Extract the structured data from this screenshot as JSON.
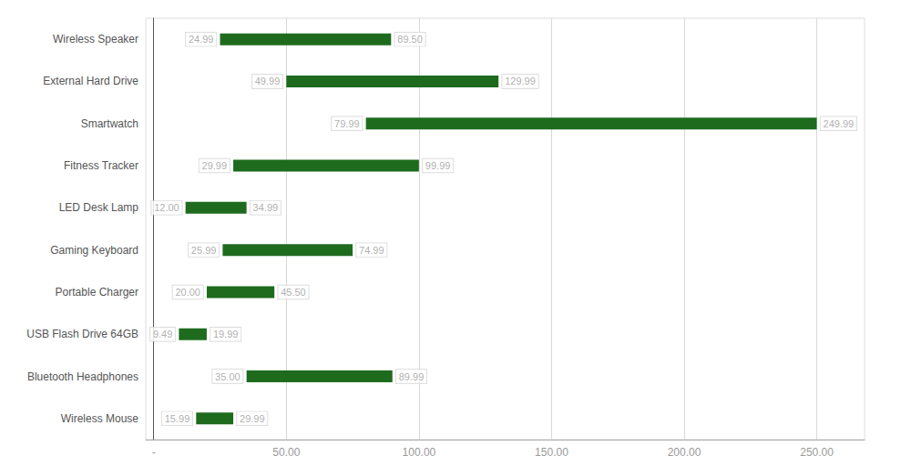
{
  "chart_data": {
    "type": "bar",
    "orientation": "horizontal",
    "categories": [
      "Wireless Speaker",
      "External Hard Drive",
      "Smartwatch",
      "Fitness Tracker",
      "LED Desk Lamp",
      "Gaming Keyboard",
      "Portable Charger",
      "USB Flash Drive 64GB",
      "Bluetooth Headphones",
      "Wireless Mouse"
    ],
    "min_values": [
      24.99,
      49.99,
      79.99,
      29.99,
      12.0,
      25.99,
      20.0,
      9.49,
      35.0,
      15.99
    ],
    "min_value_labels": [
      "24.99",
      "49.99",
      "79.99",
      "29.99",
      "12.00",
      "25.99",
      "20.00",
      "9.49",
      "35.00",
      "15.99"
    ],
    "max_values": [
      89.5,
      129.99,
      249.99,
      99.99,
      34.99,
      74.99,
      45.5,
      19.99,
      89.99,
      29.99
    ],
    "max_value_labels": [
      "89.50",
      "129.99",
      "249.99",
      "99.99",
      "34.99",
      "74.99",
      "45.50",
      "19.99",
      "89.99",
      "29.99"
    ],
    "color": "#1e6b1e",
    "data_labels": true,
    "xlim": [
      -3,
      268
    ],
    "xticks": [
      {
        "value": 0,
        "label": "-"
      },
      {
        "value": 50,
        "label": "50.00"
      },
      {
        "value": 100,
        "label": "100.00"
      },
      {
        "value": 150,
        "label": "150.00"
      },
      {
        "value": 200,
        "label": "200.00"
      },
      {
        "value": 250,
        "label": "250.00"
      }
    ],
    "grid": true
  }
}
